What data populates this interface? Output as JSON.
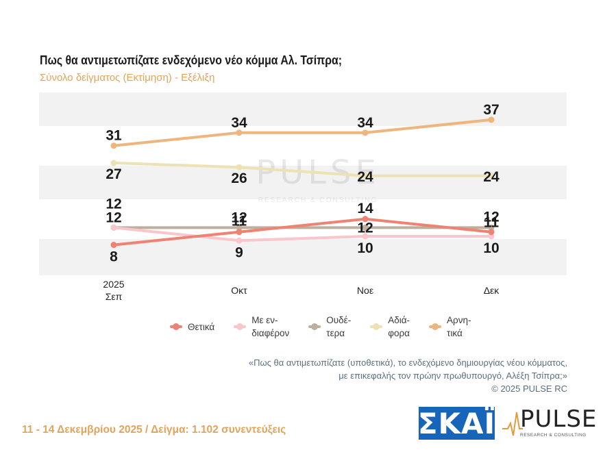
{
  "header": {
    "title": "Πως θα αντιμετωπίζατε ενδεχόμενο νέο κόμμα Αλ. Τσίπρα;",
    "subtitle": "Σύνολο δείγματος  (Εκτίμηση) - Εξέλιξη"
  },
  "watermark": {
    "brand": "PULSE",
    "tagline": "RESEARCH & CONSULTING"
  },
  "chart_data": {
    "type": "line",
    "categories": [
      "2025\nΣεπ",
      "Οκτ",
      "Νοε",
      "Δεκ"
    ],
    "series": [
      {
        "name": "Θετικά",
        "values": [
          8,
          11,
          14,
          11
        ],
        "color": "#ee8373"
      },
      {
        "name": "Με εν-\nδιαφέρον",
        "values": [
          12,
          9,
          10,
          10
        ],
        "color": "#f8c6cb"
      },
      {
        "name": "Ουδέ-\nτερα",
        "values": [
          12,
          12,
          12,
          12
        ],
        "color": "#bcaf9e"
      },
      {
        "name": "Αδιά-\nφορα",
        "values": [
          27,
          26,
          24,
          24
        ],
        "color": "#ede2b4"
      },
      {
        "name": "Αρνη-\nτικά",
        "values": [
          31,
          34,
          34,
          37
        ],
        "color": "#eeb57d"
      }
    ],
    "data_labels": [
      [
        "8",
        "11",
        "14",
        "11"
      ],
      [
        "12",
        "9",
        "10",
        "10"
      ],
      [
        "12",
        "12",
        "12",
        "12"
      ],
      [
        "27",
        "26",
        "24",
        "24"
      ],
      [
        "31",
        "34",
        "34",
        "37"
      ]
    ],
    "grid": "alternating bands",
    "legend": "bottom"
  },
  "note": {
    "line1": "«Πως θα αντιμετωπίζατε (υποθετικά), το ενδεχόμενο δημιουργίας νέου κόμματος,",
    "line2": "με επικεφαλής τον πρώην πρωθυπουργό, Αλέξη Τσίπρα;»",
    "line3": "©  2025  PULSE RC"
  },
  "footer": {
    "text": "11 - 14 Δεκεμβρίου 2025  /  Δείγμα:  1.102 συνεντεύξεις"
  },
  "logos": {
    "skai": "ΣΚΑΪ",
    "pulse": "PULSE",
    "pulse_sub": "RESEARCH & CONSULTING"
  }
}
